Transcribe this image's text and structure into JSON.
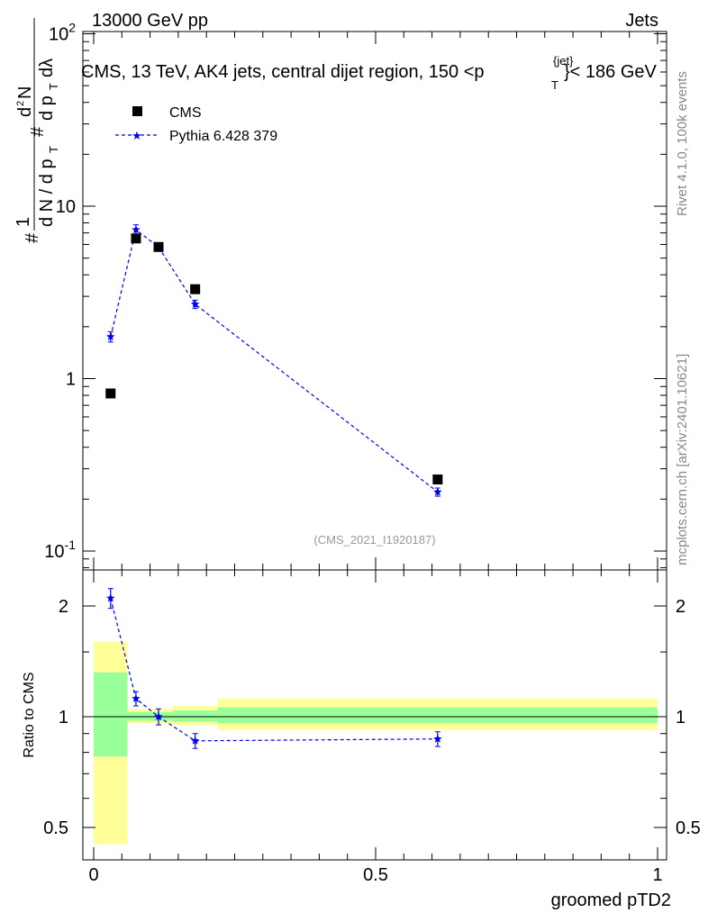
{
  "header": {
    "left": "13000 GeV pp",
    "right": "Jets",
    "plot_title": "CMS, 13 TeV, AK4 jets, central dijet region, 150 <p",
    "plot_title_sub": "T",
    "plot_title_sup": "{jet}",
    "plot_title_tail": "}< 186 GeV",
    "analysis_id": "(CMS_2021_I1920187)"
  },
  "side_labels": {
    "rivet": "Rivet 4.1.0,  100k events",
    "mcplots": "mcplots.cern.ch [arXiv:2401.10621]"
  },
  "colors": {
    "data": "#000000",
    "mc": "#0000ee",
    "band_outer": "#ffff99",
    "band_inner": "#99ff99"
  },
  "chart_data": [
    {
      "type": "scatter",
      "panel": "main",
      "yscale": "log",
      "ylim": [
        0.1,
        100
      ],
      "xlim": [
        0,
        1
      ],
      "ylabel": "# 1/(d N / d p_T) # d^2N/(d p_T d λ)",
      "yticks": [
        0.1,
        1,
        10,
        100
      ],
      "ytick_labels": [
        "10^-1",
        "1",
        "10",
        "10^2"
      ],
      "legend": [
        "CMS",
        "Pythia 6.428 379"
      ],
      "legend_position": "top-left",
      "series": [
        {
          "name": "CMS",
          "marker": "square",
          "x": [
            0.03,
            0.075,
            0.115,
            0.18,
            0.61
          ],
          "y": [
            0.82,
            6.5,
            5.8,
            3.3,
            0.26
          ]
        },
        {
          "name": "Pythia 6.428 379",
          "marker": "star",
          "line": "dashed",
          "x": [
            0.03,
            0.075,
            0.115,
            0.18,
            0.61
          ],
          "y": [
            1.75,
            7.3,
            5.8,
            2.7,
            0.22
          ],
          "yerr": [
            0.12,
            0.5,
            0.3,
            0.15,
            0.012
          ]
        }
      ]
    },
    {
      "type": "scatter",
      "panel": "ratio",
      "yscale": "log",
      "ylim": [
        0.42,
        2.35
      ],
      "xlim": [
        0,
        1
      ],
      "xlabel": "groomed pTD2",
      "ylabel": "Ratio to CMS",
      "xticks": [
        0,
        0.5,
        1
      ],
      "xtick_labels": [
        "0",
        "0.5",
        "1"
      ],
      "yticks": [
        0.5,
        1,
        2
      ],
      "ytick_labels": [
        "0.5",
        "1",
        "2"
      ],
      "bands": [
        {
          "x0": 0.0,
          "x1": 0.06,
          "outer": [
            0.45,
            1.6
          ],
          "inner": [
            0.78,
            1.32
          ]
        },
        {
          "x0": 0.06,
          "x1": 0.14,
          "outer": [
            0.96,
            1.05
          ],
          "inner": [
            0.975,
            1.03
          ]
        },
        {
          "x0": 0.14,
          "x1": 0.22,
          "outer": [
            0.95,
            1.07
          ],
          "inner": [
            0.97,
            1.04
          ]
        },
        {
          "x0": 0.22,
          "x1": 1.0,
          "outer": [
            0.92,
            1.12
          ],
          "inner": [
            0.96,
            1.06
          ]
        }
      ],
      "series": [
        {
          "name": "Pythia 6.428 379 / CMS",
          "marker": "star",
          "line": "dashed",
          "x": [
            0.03,
            0.075,
            0.115,
            0.18,
            0.61
          ],
          "y": [
            2.1,
            1.12,
            1.0,
            0.86,
            0.87
          ],
          "yerr": [
            0.13,
            0.05,
            0.05,
            0.04,
            0.04
          ]
        }
      ]
    }
  ]
}
